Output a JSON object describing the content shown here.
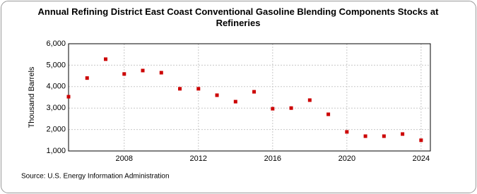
{
  "chart_data": {
    "type": "scatter",
    "title": "Annual Refining District East Coast Conventional Gasoline Blending Components Stocks at Refineries",
    "y_label": "Thousand Barrels",
    "source": "Source: U.S. Energy Information Administration",
    "x": [
      2005,
      2006,
      2007,
      2008,
      2009,
      2010,
      2011,
      2012,
      2013,
      2014,
      2015,
      2016,
      2017,
      2018,
      2019,
      2020,
      2021,
      2022,
      2023,
      2024
    ],
    "series": [
      {
        "name": "Stocks",
        "color": "#cc0000",
        "values": [
          3530,
          4400,
          5280,
          4590,
          4750,
          4650,
          3900,
          3900,
          3600,
          3300,
          3760,
          2970,
          3000,
          3370,
          2710,
          1890,
          1690,
          1690,
          1790,
          1500
        ]
      }
    ],
    "xlim": [
      2005,
      2024.5
    ],
    "xticks": [
      2008,
      2012,
      2016,
      2020,
      2024
    ],
    "ylim": [
      1000,
      6000
    ],
    "yticks": [
      {
        "value": 1000,
        "label": "1,000"
      },
      {
        "value": 2000,
        "label": "2,000"
      },
      {
        "value": 3000,
        "label": "3,000"
      },
      {
        "value": 4000,
        "label": "4,000"
      },
      {
        "value": 5000,
        "label": "5,000"
      },
      {
        "value": 6000,
        "label": "6,000"
      }
    ],
    "grid": true
  }
}
